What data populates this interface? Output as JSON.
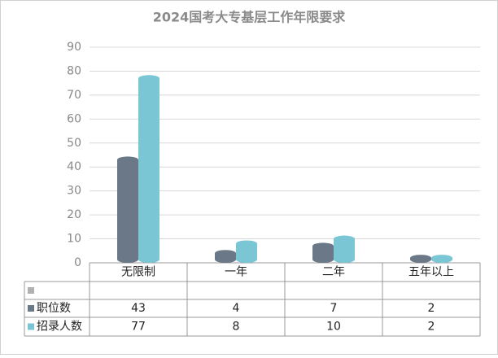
{
  "chart_data": {
    "type": "bar",
    "title": "2024国考大专基层工作年限要求",
    "categories": [
      "无限制",
      "一年",
      "二年",
      "五年以上"
    ],
    "series": [
      {
        "name": "职位数",
        "color": "#6b7888",
        "values": [
          43,
          4,
          7,
          2
        ]
      },
      {
        "name": "招录人数",
        "color": "#7ac6d4",
        "values": [
          77,
          8,
          10,
          2
        ]
      }
    ],
    "ylim": [
      0,
      90
    ],
    "yticks": [
      0,
      10,
      20,
      30,
      40,
      50,
      60,
      70,
      80,
      90
    ],
    "grid": true
  }
}
